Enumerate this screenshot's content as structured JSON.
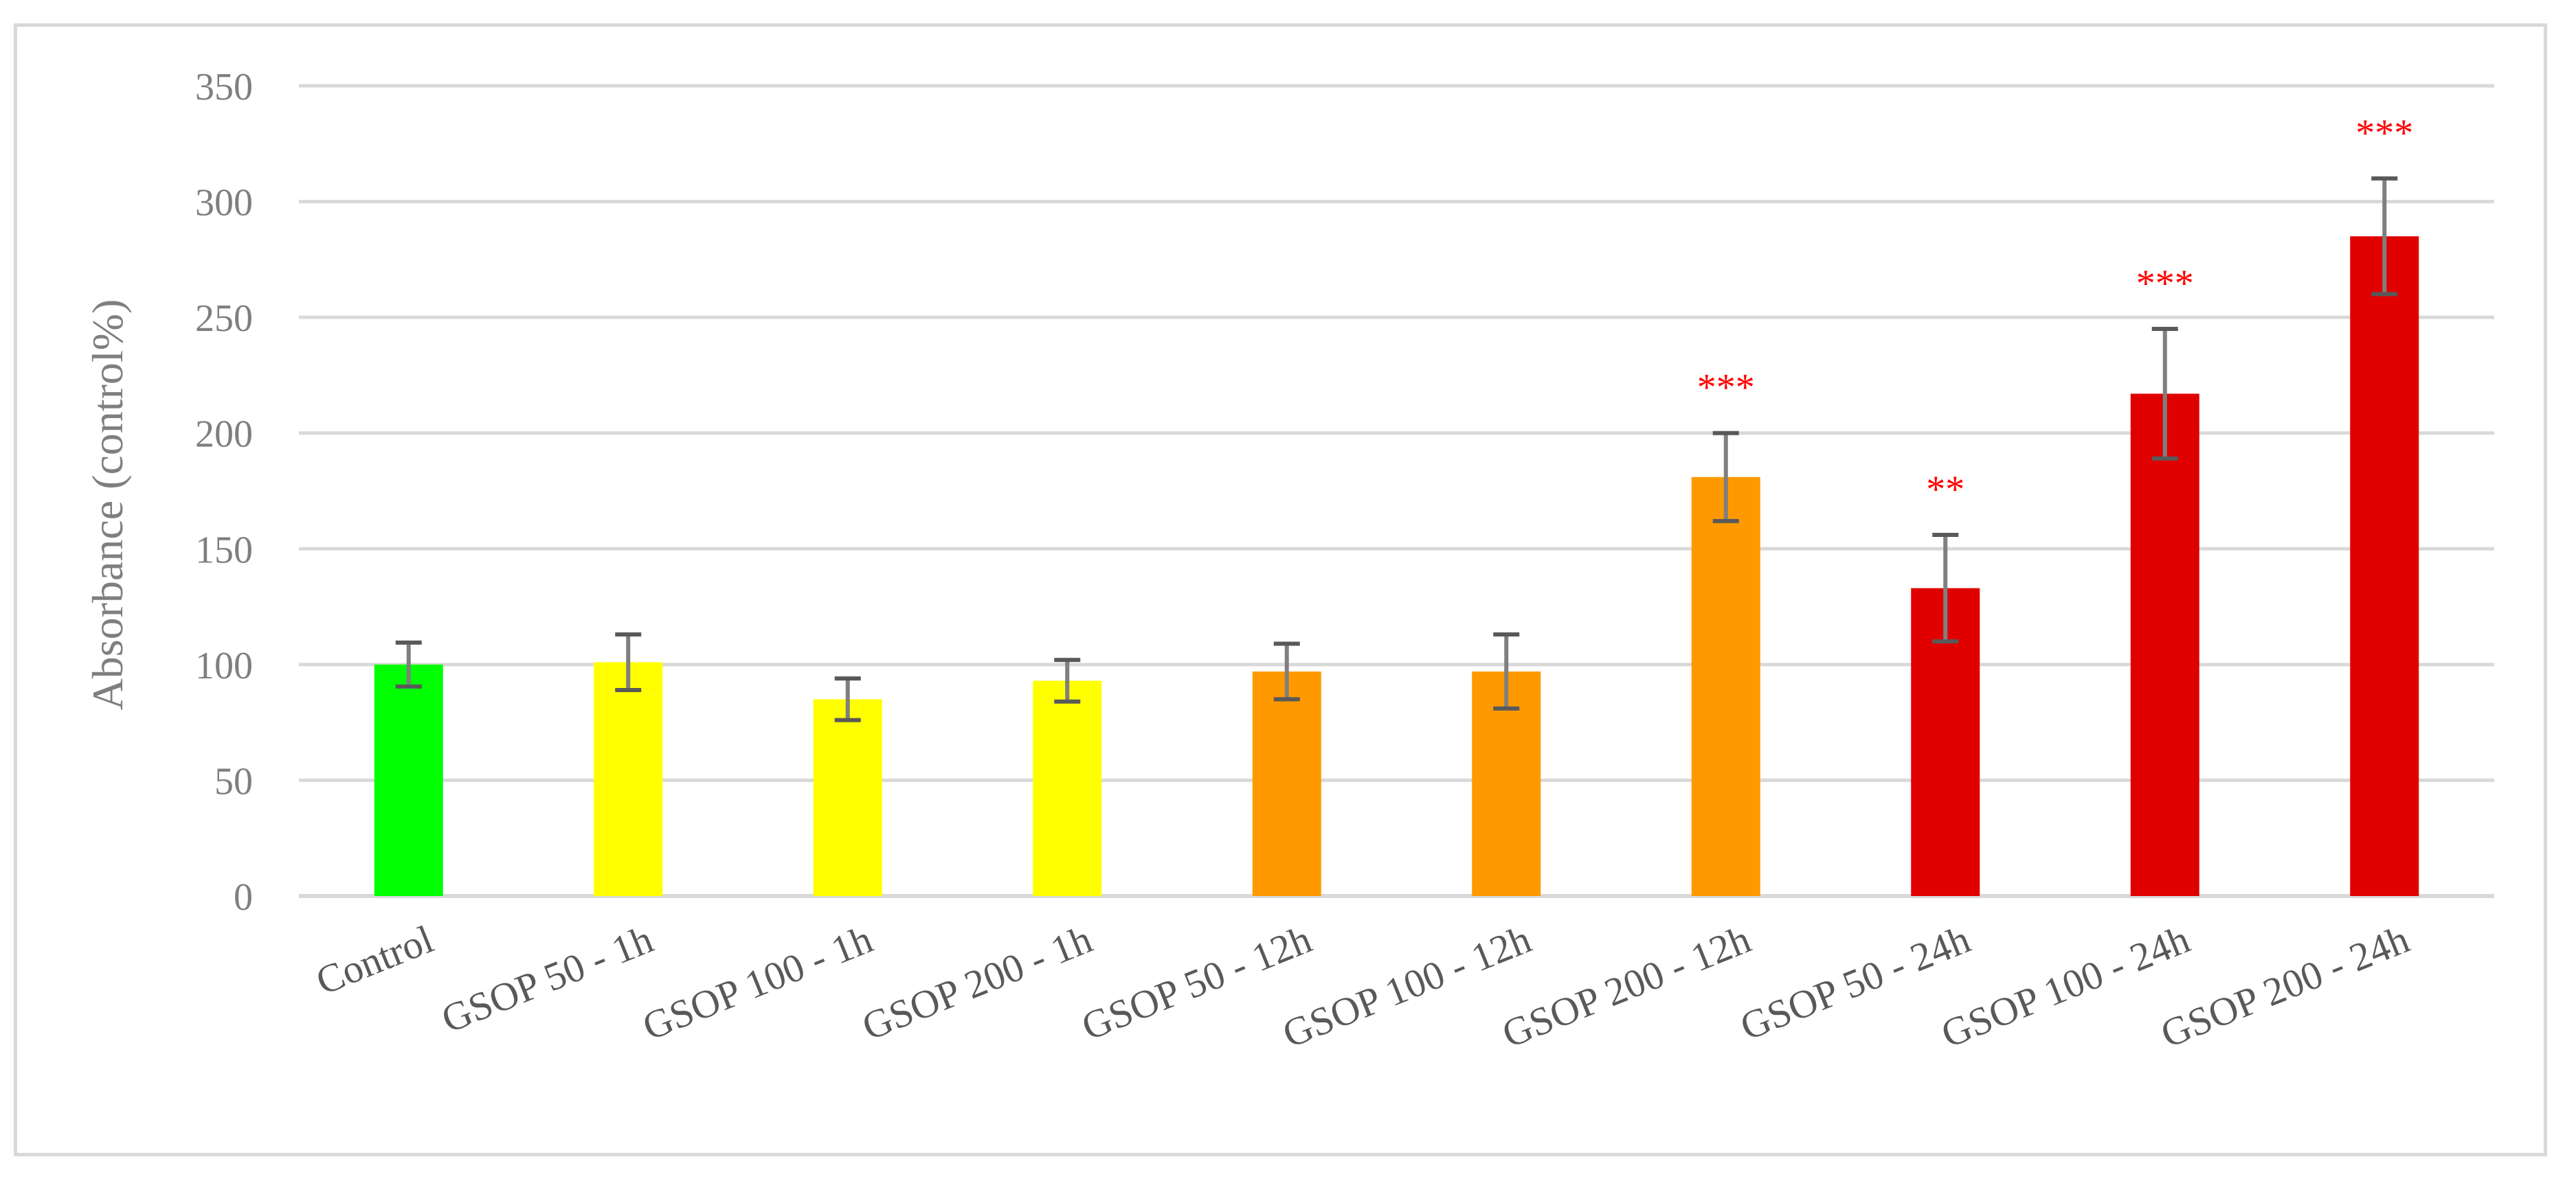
{
  "chart_data": {
    "type": "bar",
    "title": "",
    "xlabel": "",
    "ylabel": "Absorbance (control%)",
    "ylim": [
      0,
      350
    ],
    "yticks": [
      0,
      50,
      100,
      150,
      200,
      250,
      300,
      350
    ],
    "grid": true,
    "legend": "none",
    "categories": [
      "Control",
      "GSOP 50 - 1h",
      "GSOP 100 - 1h",
      "GSOP 200 - 1h",
      "GSOP 50 - 12h",
      "GSOP 100 - 12h",
      "GSOP 200 - 12h",
      "GSOP 50 - 24h",
      "GSOP 100 - 24h",
      "GSOP 200 - 24h"
    ],
    "values": [
      100,
      101,
      85,
      93,
      97,
      97,
      181,
      133,
      217,
      285
    ],
    "errors": [
      9.5,
      12,
      9,
      9,
      12,
      16,
      19,
      23,
      28,
      25
    ],
    "significance": [
      "",
      "",
      "",
      "",
      "",
      "",
      "***",
      "**",
      "***",
      "***"
    ],
    "colors": [
      "#00ff00",
      "#ffff00",
      "#ffff00",
      "#ffff00",
      "#ff9900",
      "#ff9900",
      "#ff9900",
      "#e00000",
      "#e00000",
      "#e00000"
    ]
  }
}
